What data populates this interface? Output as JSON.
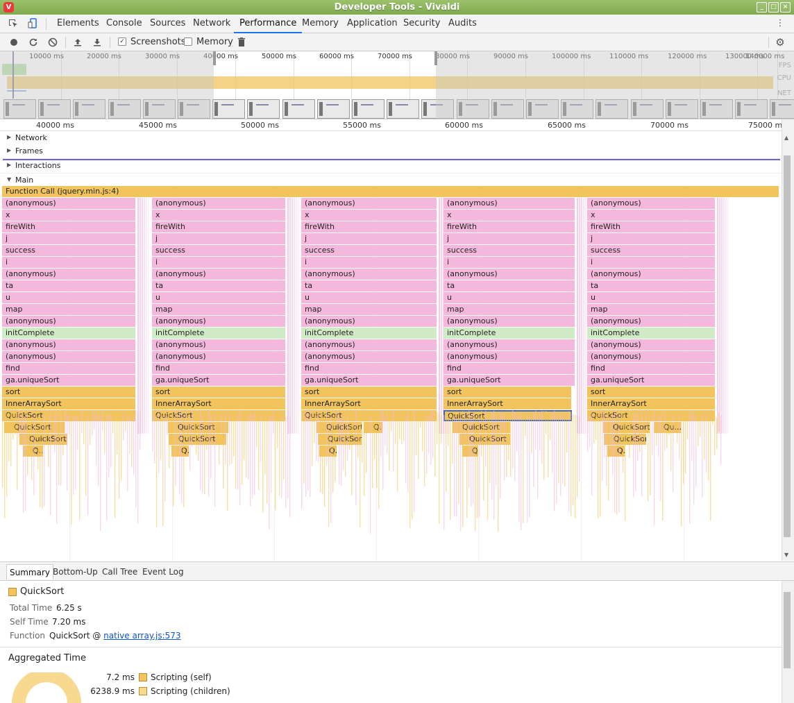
{
  "window": {
    "title": "Developer Tools - Vivaldi",
    "logo": "V",
    "controls": [
      "_",
      "□",
      "×"
    ]
  },
  "tabs": [
    {
      "label": "Elements"
    },
    {
      "label": "Console"
    },
    {
      "label": "Sources"
    },
    {
      "label": "Network"
    },
    {
      "label": "Performance",
      "active": true
    },
    {
      "label": "Memory"
    },
    {
      "label": "Application"
    },
    {
      "label": "Security"
    },
    {
      "label": "Audits"
    }
  ],
  "icons": {
    "inspect": "inspect-icon",
    "device": "device-icon",
    "more": "more-icon",
    "record": "record-icon",
    "reload": "reload-icon",
    "clear": "clear-icon",
    "upload": "upload-icon",
    "download": "download-icon",
    "trash": "trash-icon",
    "settings": "gear-icon",
    "track_expand": "triangle-icon"
  },
  "toolbar": {
    "screenshots_label": "Screenshots",
    "screenshots_checked": true,
    "memory_label": "Memory",
    "memory_checked": false
  },
  "overview": {
    "ticks": [
      "10000 ms",
      "20000 ms",
      "30000 ms",
      "40000 ms",
      "50000 ms",
      "60000 ms",
      "70000 ms",
      "80000 ms",
      "90000 ms",
      "100000 ms",
      "110000 ms",
      "120000 ms",
      "130000 ms",
      "140000 ms"
    ],
    "labels": {
      "fps": "FPS",
      "cpu": "CPU",
      "net": "NET"
    },
    "cpu_color": "#f1c45e"
  },
  "ruler": {
    "ticks": [
      "40000 ms",
      "45000 ms",
      "50000 ms",
      "55000 ms",
      "60000 ms",
      "65000 ms",
      "70000 ms",
      "75000 ms"
    ]
  },
  "tracks": [
    {
      "label": "Network",
      "expanded": false
    },
    {
      "label": "Frames",
      "expanded": false
    },
    {
      "label": "Interactions",
      "expanded": false
    },
    {
      "label": "Main",
      "expanded": true
    }
  ],
  "flame": {
    "top_call": "Function Call (jquery.min.js:4)",
    "stack": [
      "(anonymous)",
      "x",
      "fireWith",
      "j",
      "success",
      "i",
      "(anonymous)",
      "ta",
      "u",
      "map",
      "(anonymous)",
      "initComplete",
      "(anonymous)",
      "(anonymous)",
      "find",
      "ga.uniqueSort",
      "sort",
      "InnerArraySort",
      "QuickSort"
    ],
    "deep_rows": [
      [
        "QuickSort",
        "QuickSort",
        "QuickSort",
        "Q...",
        "QuickSort",
        "QuickSort",
        "Qu...rt"
      ],
      [
        "QuickSort",
        "QuickSort",
        "QuickSort",
        "QuickSort",
        "QuickSort"
      ],
      [
        "Q...t",
        "Q...",
        "Q...",
        "Q...",
        "Q..."
      ]
    ],
    "colors": {
      "yellow": "#f1c45e",
      "pink": "#f4b8dc",
      "green": "#cfecc7"
    }
  },
  "detail_tabs": [
    {
      "label": "Summary",
      "active": true
    },
    {
      "label": "Bottom-Up"
    },
    {
      "label": "Call Tree"
    },
    {
      "label": "Event Log"
    }
  ],
  "summary": {
    "title": "QuickSort",
    "color": "#f1c45e",
    "total_time_label": "Total Time",
    "total_time": "6.25 s",
    "self_time_label": "Self Time",
    "self_time": "7.20 ms",
    "function_label": "Function",
    "function_name": "QuickSort @ ",
    "function_link": "native array.js:573",
    "aggregated_title": "Aggregated Time",
    "legend": [
      {
        "value": "7.2 ms",
        "label": "Scripting (self)",
        "color": "#f1c45e"
      },
      {
        "value": "6238.9 ms",
        "label": "Scripting (children)",
        "color": "#f7d98f"
      }
    ]
  }
}
